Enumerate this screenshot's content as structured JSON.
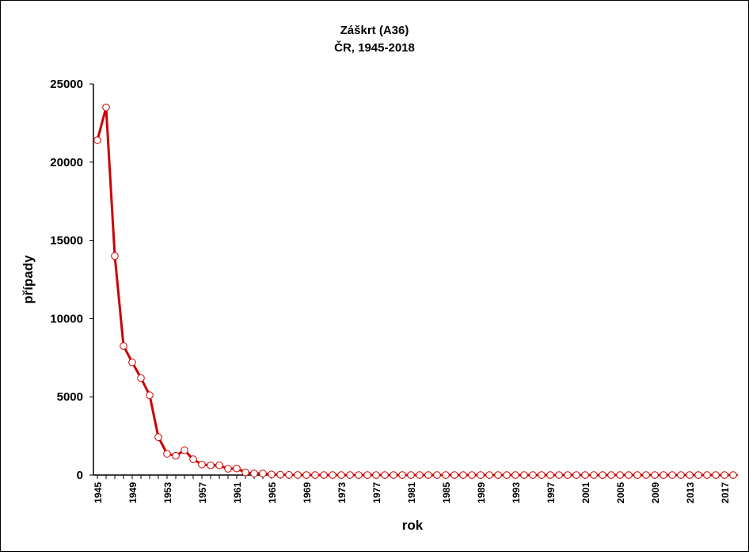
{
  "chart_data": {
    "type": "line",
    "title": "Záškrt (A36)",
    "subtitle": "ČR, 1945-2018",
    "xlabel": "rok",
    "ylabel": "případy",
    "ylim": [
      0,
      25000
    ],
    "yticks": [
      0,
      5000,
      10000,
      15000,
      20000,
      25000
    ],
    "xticks": [
      1945,
      1949,
      1953,
      1957,
      1961,
      1965,
      1969,
      1973,
      1977,
      1981,
      1985,
      1989,
      1993,
      1997,
      2001,
      2005,
      2009,
      2013,
      2017
    ],
    "xlim": [
      1945,
      2018
    ],
    "grid": false,
    "line_color": "#cc0000",
    "x": [
      1945,
      1946,
      1947,
      1948,
      1949,
      1950,
      1951,
      1952,
      1953,
      1954,
      1955,
      1956,
      1957,
      1958,
      1959,
      1960,
      1961,
      1962,
      1963,
      1964,
      1965,
      1966,
      1967,
      1968,
      1969,
      1970,
      1971,
      1972,
      1973,
      1974,
      1975,
      1976,
      1977,
      1978,
      1979,
      1980,
      1981,
      1982,
      1983,
      1984,
      1985,
      1986,
      1987,
      1988,
      1989,
      1990,
      1991,
      1992,
      1993,
      1994,
      1995,
      1996,
      1997,
      1998,
      1999,
      2000,
      2001,
      2002,
      2003,
      2004,
      2005,
      2006,
      2007,
      2008,
      2009,
      2010,
      2011,
      2012,
      2013,
      2014,
      2015,
      2016,
      2017,
      2018
    ],
    "values": [
      21400,
      23500,
      14000,
      8250,
      7200,
      6200,
      5100,
      2420,
      1360,
      1230,
      1580,
      1010,
      670,
      620,
      620,
      400,
      420,
      170,
      100,
      100,
      40,
      20,
      10,
      5,
      0,
      0,
      0,
      0,
      0,
      0,
      0,
      0,
      0,
      0,
      0,
      0,
      0,
      0,
      0,
      0,
      0,
      0,
      0,
      0,
      0,
      0,
      0,
      0,
      0,
      0,
      0,
      0,
      0,
      0,
      0,
      0,
      0,
      0,
      0,
      0,
      0,
      0,
      0,
      0,
      0,
      0,
      0,
      0,
      0,
      0,
      0,
      0,
      0,
      0
    ]
  }
}
